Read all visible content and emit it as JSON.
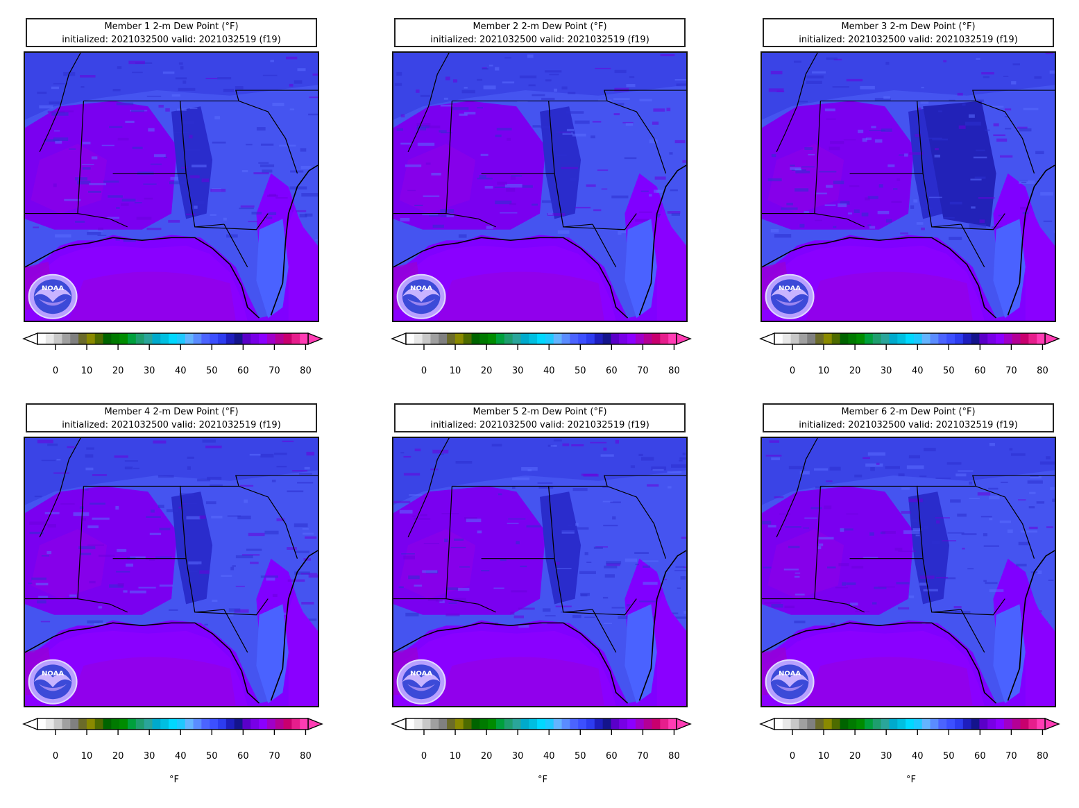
{
  "panels": [
    {
      "title_line1": "Member 1 2-m Dew Point (°F)",
      "title_line2": "initialized: 2021032500 valid: 2021032519 (f19)"
    },
    {
      "title_line1": "Member 2 2-m Dew Point (°F)",
      "title_line2": "initialized: 2021032500 valid: 2021032519 (f19)"
    },
    {
      "title_line1": "Member 3 2-m Dew Point (°F)",
      "title_line2": "initialized: 2021032500 valid: 2021032519 (f19)"
    },
    {
      "title_line1": "Member 4 2-m Dew Point (°F)",
      "title_line2": "initialized: 2021032500 valid: 2021032519 (f19)"
    },
    {
      "title_line1": "Member 5 2-m Dew Point (°F)",
      "title_line2": "initialized: 2021032500 valid: 2021032519 (f19)"
    },
    {
      "title_line1": "Member 6 2-m Dew Point (°F)",
      "title_line2": "initialized: 2021032500 valid: 2021032519 (f19)"
    }
  ],
  "colorbar": {
    "ticks": [
      "0",
      "10",
      "20",
      "30",
      "40",
      "50",
      "60",
      "70",
      "80"
    ],
    "units": "°F",
    "colors": [
      "#ffffff",
      "#e8e8e8",
      "#c8c8c8",
      "#a0a0a0",
      "#808080",
      "#6b6b2a",
      "#8a8a00",
      "#4d6b00",
      "#006400",
      "#007a00",
      "#008c00",
      "#00a03c",
      "#1e9e6e",
      "#2aa59a",
      "#00aacc",
      "#00bfe0",
      "#00d8ff",
      "#1ec8ff",
      "#64b4ff",
      "#5a8cff",
      "#4b64ff",
      "#3c50ff",
      "#2d3cf0",
      "#1e1ebe",
      "#14148c",
      "#5a00c8",
      "#7800e6",
      "#8c00ff",
      "#a000c8",
      "#b40096",
      "#c8006e",
      "#e61e8c",
      "#ff3cb4"
    ],
    "under_color": "#ffffff",
    "over_color": "#ff3cb4"
  },
  "logo": {
    "text": "NOAA"
  }
}
